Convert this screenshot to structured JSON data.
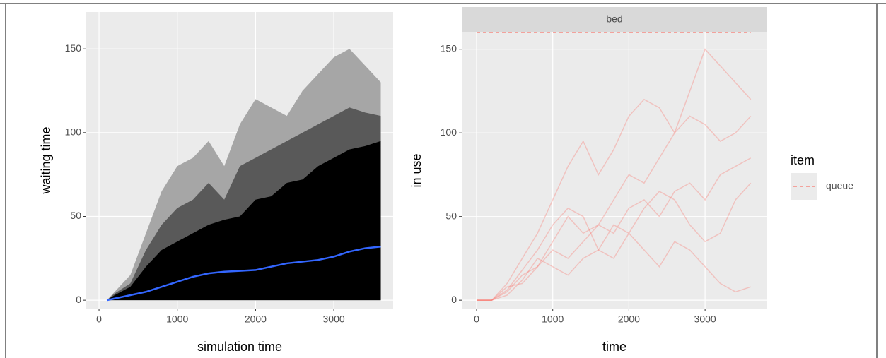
{
  "chart_data": [
    {
      "type": "area",
      "xlabel": "simulation time",
      "ylabel": "waiting time",
      "x": [
        100,
        200,
        400,
        600,
        800,
        1000,
        1200,
        1400,
        1600,
        1800,
        2000,
        2200,
        2400,
        2600,
        2800,
        3000,
        3200,
        3400,
        3600
      ],
      "series": [
        {
          "style": "area",
          "color": "#a6a6a6",
          "values": [
            0,
            5,
            15,
            40,
            65,
            80,
            85,
            95,
            80,
            105,
            120,
            115,
            110,
            125,
            135,
            145,
            150,
            140,
            130
          ]
        },
        {
          "style": "area",
          "color": "#595959",
          "values": [
            0,
            4,
            10,
            30,
            45,
            55,
            60,
            70,
            60,
            80,
            85,
            90,
            95,
            100,
            105,
            110,
            115,
            112,
            110
          ]
        },
        {
          "style": "area",
          "color": "#000000",
          "values": [
            0,
            3,
            8,
            20,
            30,
            35,
            40,
            45,
            48,
            50,
            60,
            62,
            70,
            72,
            80,
            85,
            90,
            92,
            95
          ]
        },
        {
          "style": "line",
          "color": "#3366ff",
          "values": [
            0,
            1,
            3,
            5,
            8,
            11,
            14,
            16,
            17,
            17.5,
            18,
            20,
            22,
            23,
            24,
            26,
            29,
            31,
            32
          ]
        }
      ],
      "xlim": [
        -163,
        3758
      ],
      "ylim": [
        -5,
        172
      ],
      "xticks": [
        0,
        1000,
        2000,
        3000
      ],
      "yticks": [
        0,
        50,
        100,
        150
      ],
      "grid": true
    },
    {
      "type": "line",
      "facet": "bed",
      "xlabel": "time",
      "ylabel": "in use",
      "legend_title": "item",
      "x": [
        0,
        200,
        400,
        600,
        800,
        1000,
        1200,
        1400,
        1600,
        1800,
        2000,
        2200,
        2400,
        2600,
        2800,
        3000,
        3200,
        3400,
        3600
      ],
      "series": [
        {
          "name": "queue",
          "color": "#F8766D",
          "limit": 160,
          "runs": [
            [
              0,
              0,
              10,
              25,
              40,
              60,
              80,
              95,
              75,
              90,
              110,
              120,
              115,
              100,
              125,
              150,
              140,
              130,
              120
            ],
            [
              0,
              0,
              5,
              15,
              20,
              35,
              50,
              40,
              45,
              60,
              75,
              70,
              85,
              100,
              110,
              105,
              95,
              100,
              110
            ],
            [
              0,
              0,
              8,
              10,
              20,
              30,
              25,
              35,
              45,
              40,
              55,
              60,
              50,
              65,
              70,
              60,
              75,
              80,
              85
            ],
            [
              0,
              0,
              3,
              12,
              25,
              20,
              15,
              25,
              30,
              45,
              40,
              30,
              20,
              35,
              30,
              20,
              10,
              5,
              8
            ],
            [
              0,
              0,
              6,
              18,
              30,
              45,
              55,
              50,
              30,
              25,
              40,
              55,
              65,
              60,
              45,
              35,
              40,
              60,
              70
            ]
          ]
        }
      ],
      "xlim": [
        -195,
        3816
      ],
      "ylim": [
        -5,
        160
      ],
      "xticks": [
        0,
        1000,
        2000,
        3000
      ],
      "yticks": [
        0,
        50,
        100,
        150
      ],
      "grid": true
    }
  ]
}
